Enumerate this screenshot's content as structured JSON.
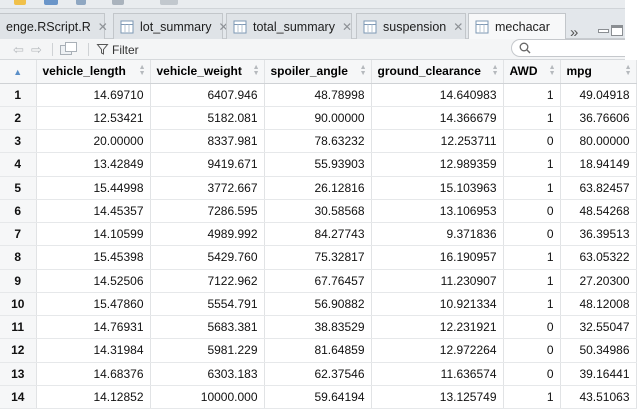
{
  "tabs": [
    {
      "label": "enge.RScript.R",
      "active": false,
      "icon": "script-icon"
    },
    {
      "label": "lot_summary",
      "active": false,
      "icon": "table-icon"
    },
    {
      "label": "total_summary",
      "active": false,
      "icon": "table-icon"
    },
    {
      "label": "suspension",
      "active": false,
      "icon": "table-icon"
    },
    {
      "label": "mechacar",
      "active": true,
      "icon": "table-icon"
    }
  ],
  "toolbar": {
    "filter_label": "Filter",
    "search_placeholder": ""
  },
  "table": {
    "columns": [
      "vehicle_length",
      "vehicle_weight",
      "spoiler_angle",
      "ground_clearance",
      "AWD",
      "mpg"
    ],
    "rows": [
      [
        "1",
        "14.69710",
        "6407.946",
        "48.78998",
        "14.640983",
        "1",
        "49.04918"
      ],
      [
        "2",
        "12.53421",
        "5182.081",
        "90.00000",
        "14.366679",
        "1",
        "36.76606"
      ],
      [
        "3",
        "20.00000",
        "8337.981",
        "78.63232",
        "12.253711",
        "0",
        "80.00000"
      ],
      [
        "4",
        "13.42849",
        "9419.671",
        "55.93903",
        "12.989359",
        "1",
        "18.94149"
      ],
      [
        "5",
        "15.44998",
        "3772.667",
        "26.12816",
        "15.103963",
        "1",
        "63.82457"
      ],
      [
        "6",
        "14.45357",
        "7286.595",
        "30.58568",
        "13.106953",
        "0",
        "48.54268"
      ],
      [
        "7",
        "14.10599",
        "4989.992",
        "84.27743",
        "9.371836",
        "0",
        "36.39513"
      ],
      [
        "8",
        "15.45398",
        "5429.760",
        "75.32817",
        "16.190957",
        "1",
        "63.05322"
      ],
      [
        "9",
        "14.52506",
        "7122.962",
        "67.76457",
        "11.230907",
        "1",
        "27.20300"
      ],
      [
        "10",
        "15.47860",
        "5554.791",
        "56.90882",
        "10.921334",
        "1",
        "48.12008"
      ],
      [
        "11",
        "14.76931",
        "5683.381",
        "38.83529",
        "12.231921",
        "0",
        "32.55047"
      ],
      [
        "12",
        "14.31984",
        "5981.229",
        "81.64859",
        "12.972264",
        "0",
        "50.34986"
      ],
      [
        "13",
        "14.68376",
        "6303.183",
        "62.37546",
        "11.636574",
        "0",
        "39.16441"
      ],
      [
        "14",
        "14.12852",
        "10000.000",
        "59.64194",
        "13.125749",
        "1",
        "43.51063"
      ]
    ]
  }
}
